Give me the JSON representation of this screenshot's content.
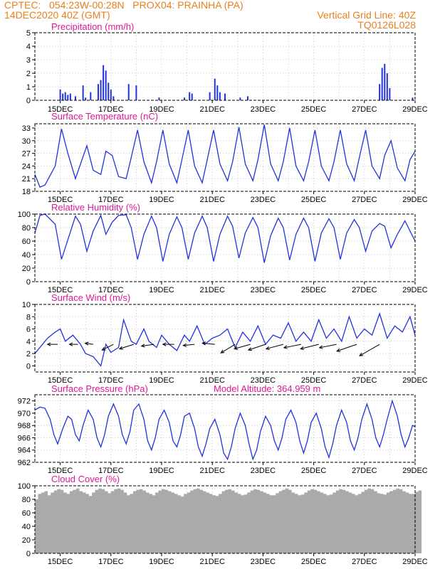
{
  "header": {
    "line1_left": "CPTEC:   054:23W-00:28N   PROX04: PRAINHA (PA)",
    "line2_left": "14DEC2020 40Z (GMT)",
    "line2_right": "Vertical Grid Line: 40Z",
    "line3_right": "TQ0126L028"
  },
  "colors": {
    "header": "#e8801e",
    "title": "#e0189a",
    "line": "#2233dd",
    "cloud": "#aaaaaa",
    "arrow": "#000000"
  },
  "chart_data": [
    {
      "type": "bar",
      "title": "Precipitation (mm/h)",
      "ylim": [
        0,
        5
      ],
      "yticks": [
        0,
        1,
        2,
        3,
        4,
        5
      ],
      "xlim": [
        14.0,
        29.0
      ],
      "xticks": [
        "15DEC",
        "17DEC",
        "19DEC",
        "21DEC",
        "23DEC",
        "25DEC",
        "27DEC",
        "29DEC"
      ],
      "x": [
        15.0,
        15.1,
        15.2,
        15.3,
        15.4,
        15.6,
        15.9,
        16.0,
        16.2,
        16.5,
        16.6,
        16.7,
        16.8,
        16.9,
        17.0,
        17.1,
        17.7,
        18.0,
        18.9,
        19.9,
        20.1,
        20.2,
        20.9,
        21.1,
        21.2,
        21.3,
        21.5,
        22.1,
        22.4,
        27.6,
        27.7,
        27.8,
        27.9,
        28.0,
        28.9
      ],
      "values": [
        0.8,
        0.5,
        0.6,
        0.4,
        0.5,
        0.3,
        1.1,
        0.2,
        0.6,
        1.2,
        1.5,
        2.6,
        2.2,
        1.3,
        0.8,
        0.3,
        1.2,
        1.1,
        0.2,
        0.2,
        0.6,
        0.5,
        0.6,
        1.6,
        1.1,
        0.6,
        0.5,
        0.2,
        0.3,
        1.2,
        2.4,
        2.7,
        2.0,
        0.9,
        0.2
      ]
    },
    {
      "type": "line",
      "title": "Surface Temperature (nC)",
      "ylim": [
        18,
        34
      ],
      "yticks": [
        18,
        21,
        24,
        27,
        30,
        33
      ],
      "xlim": [
        14.0,
        29.0
      ],
      "xticks": [
        "15DEC",
        "17DEC",
        "19DEC",
        "21DEC",
        "23DEC",
        "25DEC",
        "27DEC",
        "29DEC"
      ],
      "x": [
        14.0,
        14.2,
        14.4,
        14.8,
        15.05,
        15.3,
        15.6,
        15.8,
        16.05,
        16.3,
        16.6,
        16.8,
        17.05,
        17.3,
        17.6,
        17.8,
        18.05,
        18.3,
        18.6,
        18.8,
        19.05,
        19.3,
        19.6,
        19.8,
        20.05,
        20.3,
        20.6,
        20.8,
        21.05,
        21.3,
        21.6,
        21.8,
        22.05,
        22.3,
        22.6,
        22.8,
        23.05,
        23.3,
        23.6,
        23.8,
        24.05,
        24.3,
        24.6,
        24.8,
        25.05,
        25.3,
        25.6,
        25.8,
        26.05,
        26.3,
        26.6,
        26.8,
        27.05,
        27.3,
        27.6,
        27.8,
        28.05,
        28.3,
        28.6,
        28.8,
        29.0
      ],
      "values": [
        22.0,
        19.0,
        19.5,
        24.0,
        32.8,
        27.0,
        21.0,
        24.5,
        28.8,
        23.0,
        22.0,
        27.5,
        26.5,
        21.5,
        21.0,
        26.0,
        32.5,
        25.0,
        20.0,
        25.0,
        32.5,
        24.5,
        20.0,
        25.5,
        32.5,
        24.0,
        20.0,
        25.5,
        32.5,
        24.5,
        20.5,
        25.0,
        33.2,
        24.5,
        20.5,
        25.5,
        33.8,
        24.5,
        20.5,
        25.0,
        33.0,
        24.0,
        20.5,
        25.0,
        32.5,
        24.0,
        20.5,
        25.0,
        32.5,
        24.5,
        20.5,
        26.0,
        32.5,
        24.0,
        21.0,
        26.5,
        30.0,
        23.5,
        20.5,
        25.5,
        27.5
      ]
    },
    {
      "type": "line",
      "title": "Relative Humidity (%)",
      "ylim": [
        0,
        100
      ],
      "yticks": [
        0,
        20,
        40,
        60,
        80,
        100
      ],
      "xlim": [
        14.0,
        29.0
      ],
      "xticks": [
        "15DEC",
        "17DEC",
        "19DEC",
        "21DEC",
        "23DEC",
        "25DEC",
        "27DEC",
        "29DEC"
      ],
      "x": [
        14.0,
        14.2,
        14.4,
        14.8,
        15.05,
        15.3,
        15.6,
        15.8,
        16.05,
        16.3,
        16.6,
        16.8,
        17.05,
        17.3,
        17.6,
        17.8,
        18.05,
        18.3,
        18.6,
        18.8,
        19.05,
        19.3,
        19.6,
        19.8,
        20.05,
        20.3,
        20.6,
        20.8,
        21.05,
        21.3,
        21.6,
        21.8,
        22.05,
        22.3,
        22.6,
        22.8,
        23.05,
        23.3,
        23.6,
        23.8,
        24.05,
        24.3,
        24.6,
        24.8,
        25.05,
        25.3,
        25.6,
        25.8,
        26.05,
        26.3,
        26.6,
        26.8,
        27.05,
        27.3,
        27.6,
        27.8,
        28.05,
        28.3,
        28.6,
        28.8,
        29.0
      ],
      "values": [
        72,
        98,
        100,
        85,
        33,
        62,
        97,
        85,
        45,
        75,
        98,
        70,
        88,
        98,
        99,
        80,
        33,
        70,
        97,
        80,
        30,
        70,
        96,
        80,
        33,
        72,
        97,
        80,
        30,
        70,
        97,
        82,
        35,
        72,
        95,
        80,
        28,
        68,
        94,
        80,
        32,
        70,
        94,
        80,
        30,
        72,
        93,
        80,
        33,
        72,
        92,
        80,
        45,
        75,
        86,
        82,
        50,
        70,
        90,
        75,
        60
      ]
    },
    {
      "type": "line",
      "title": "Surface Wind (m/s)",
      "ylim": [
        -1,
        10
      ],
      "yticks": [
        0,
        2,
        4,
        6,
        8,
        10
      ],
      "xlim": [
        14.0,
        29.0
      ],
      "xticks": [
        "15DEC",
        "17DEC",
        "19DEC",
        "21DEC",
        "23DEC",
        "25DEC",
        "27DEC",
        "29DEC"
      ],
      "x": [
        14.0,
        14.5,
        14.8,
        15.0,
        15.2,
        15.5,
        15.8,
        16.0,
        16.3,
        16.6,
        16.8,
        17.0,
        17.3,
        17.5,
        17.8,
        18.0,
        18.3,
        18.5,
        18.8,
        19.0,
        19.3,
        19.6,
        19.9,
        20.1,
        20.4,
        20.7,
        21.0,
        21.3,
        21.6,
        21.9,
        22.2,
        22.5,
        22.8,
        23.1,
        23.4,
        23.7,
        24.0,
        24.3,
        24.6,
        24.9,
        25.2,
        25.5,
        25.8,
        26.1,
        26.4,
        26.7,
        27.0,
        27.3,
        27.6,
        27.9,
        28.2,
        28.5,
        28.8,
        29.0
      ],
      "values": [
        2.0,
        4.5,
        5.5,
        6.0,
        4.0,
        5.0,
        3.5,
        2.0,
        1.5,
        0.0,
        3.5,
        2.2,
        3.0,
        7.5,
        4.0,
        3.5,
        6.0,
        4.0,
        3.0,
        5.0,
        3.5,
        2.5,
        5.0,
        4.0,
        6.5,
        3.5,
        4.5,
        5.0,
        6.0,
        3.0,
        5.5,
        4.0,
        6.5,
        3.5,
        5.0,
        4.5,
        7.0,
        4.0,
        5.5,
        4.0,
        7.5,
        4.5,
        6.0,
        4.0,
        8.0,
        4.5,
        6.0,
        5.0,
        8.5,
        4.5,
        6.5,
        5.5,
        8.0,
        5.0
      ],
      "vectors": [
        {
          "x": 14.9,
          "u": -1.8,
          "v": 0.0
        },
        {
          "x": 15.7,
          "u": -1.5,
          "v": 0.0
        },
        {
          "x": 16.3,
          "u": -1.4,
          "v": 0.2
        },
        {
          "x": 17.1,
          "u": -2.0,
          "v": -1.0
        },
        {
          "x": 17.9,
          "u": -2.5,
          "v": -0.8
        },
        {
          "x": 18.7,
          "u": -2.2,
          "v": -0.3
        },
        {
          "x": 19.5,
          "u": -2.0,
          "v": 0.0
        },
        {
          "x": 20.3,
          "u": -2.0,
          "v": -0.2
        },
        {
          "x": 21.1,
          "u": -2.2,
          "v": 0.2
        },
        {
          "x": 21.9,
          "u": -2.5,
          "v": -1.5
        },
        {
          "x": 22.5,
          "u": -2.8,
          "v": -0.8
        },
        {
          "x": 23.1,
          "u": -3.0,
          "v": -1.0
        },
        {
          "x": 23.8,
          "u": -3.0,
          "v": -0.8
        },
        {
          "x": 24.5,
          "u": -3.0,
          "v": -0.6
        },
        {
          "x": 25.2,
          "u": -3.2,
          "v": -0.8
        },
        {
          "x": 25.9,
          "u": -3.0,
          "v": -0.6
        },
        {
          "x": 26.7,
          "u": -3.5,
          "v": -1.2
        },
        {
          "x": 27.6,
          "u": -3.5,
          "v": -2.0
        }
      ]
    },
    {
      "type": "line",
      "title": "Surface Pressure (hPa)",
      "annotation": "Model Altitude: 364.959 m",
      "ylim": [
        962,
        973
      ],
      "yticks": [
        962,
        964,
        966,
        968,
        970,
        972
      ],
      "xlim": [
        14.0,
        29.0
      ],
      "xticks": [
        "15DEC",
        "17DEC",
        "19DEC",
        "21DEC",
        "23DEC",
        "25DEC",
        "27DEC",
        "29DEC"
      ],
      "x": [
        14.0,
        14.2,
        14.4,
        14.6,
        14.75,
        14.9,
        15.1,
        15.3,
        15.45,
        15.6,
        15.75,
        15.9,
        16.1,
        16.3,
        16.45,
        16.6,
        16.75,
        16.9,
        17.1,
        17.3,
        17.45,
        17.6,
        17.75,
        17.9,
        18.1,
        18.3,
        18.45,
        18.6,
        18.75,
        18.9,
        19.1,
        19.3,
        19.45,
        19.6,
        19.75,
        19.9,
        20.1,
        20.3,
        20.45,
        20.6,
        20.75,
        20.9,
        21.1,
        21.3,
        21.45,
        21.6,
        21.75,
        21.9,
        22.1,
        22.3,
        22.45,
        22.6,
        22.75,
        22.9,
        23.1,
        23.3,
        23.45,
        23.6,
        23.75,
        23.9,
        24.1,
        24.3,
        24.45,
        24.6,
        24.75,
        24.9,
        25.1,
        25.3,
        25.45,
        25.6,
        25.75,
        25.9,
        26.1,
        26.3,
        26.45,
        26.6,
        26.75,
        26.9,
        27.1,
        27.3,
        27.45,
        27.6,
        27.75,
        27.9,
        28.1,
        28.3,
        28.45,
        28.6,
        28.75,
        28.9,
        29.0
      ],
      "values": [
        970.5,
        971.0,
        970.8,
        969.0,
        966.5,
        965.0,
        967.5,
        969.5,
        969.0,
        966.5,
        965.5,
        968.0,
        970.5,
        969.0,
        966.0,
        964.5,
        966.5,
        969.5,
        971.5,
        969.5,
        966.5,
        965.0,
        967.0,
        970.5,
        971.5,
        969.0,
        965.5,
        964.0,
        966.0,
        969.0,
        970.5,
        968.5,
        965.5,
        964.5,
        966.5,
        969.5,
        970.0,
        967.5,
        964.5,
        963.0,
        965.0,
        967.5,
        969.0,
        966.5,
        963.5,
        962.5,
        964.5,
        967.5,
        970.0,
        968.0,
        965.0,
        962.5,
        964.0,
        967.0,
        969.5,
        968.0,
        965.5,
        964.0,
        966.0,
        969.0,
        970.5,
        968.5,
        965.5,
        963.5,
        965.5,
        968.5,
        970.0,
        967.5,
        964.5,
        962.8,
        965.0,
        968.0,
        970.5,
        968.5,
        965.5,
        964.0,
        966.0,
        969.0,
        971.5,
        969.0,
        966.0,
        964.5,
        966.5,
        969.0,
        972.0,
        969.5,
        966.5,
        964.5,
        966.0,
        968.0,
        967.8
      ]
    },
    {
      "type": "bar",
      "title": "Cloud Cover (%)",
      "ylim": [
        0,
        100
      ],
      "yticks": [
        0,
        20,
        40,
        60,
        80,
        100
      ],
      "xlim": [
        14.0,
        29.0
      ],
      "xticks": [
        "15DEC",
        "17DEC",
        "19DEC",
        "21DEC",
        "23DEC",
        "25DEC",
        "27DEC",
        "29DEC"
      ],
      "x_start": 14.0,
      "x_step": 0.125,
      "values": [
        80,
        88,
        90,
        92,
        86,
        90,
        93,
        95,
        94,
        90,
        88,
        92,
        94,
        96,
        92,
        90,
        88,
        85,
        90,
        94,
        96,
        95,
        92,
        89,
        92,
        95,
        96,
        94,
        90,
        86,
        88,
        92,
        94,
        95,
        93,
        90,
        88,
        86,
        90,
        93,
        95,
        94,
        92,
        90,
        88,
        86,
        84,
        88,
        90,
        93,
        95,
        96,
        94,
        92,
        90,
        88,
        86,
        85,
        88,
        92,
        94,
        95,
        93,
        90,
        88,
        86,
        87,
        90,
        93,
        95,
        94,
        92,
        90,
        88,
        86,
        86,
        89,
        92,
        94,
        96,
        94,
        90,
        88,
        86,
        87,
        90,
        93,
        95,
        94,
        92,
        90,
        88,
        86,
        87,
        90,
        93,
        95,
        94,
        92,
        90,
        88,
        86,
        88,
        91,
        94,
        96,
        95,
        92,
        89,
        88,
        87,
        90,
        92,
        94,
        96,
        95,
        92,
        90,
        88,
        88,
        91,
        93
      ]
    }
  ]
}
